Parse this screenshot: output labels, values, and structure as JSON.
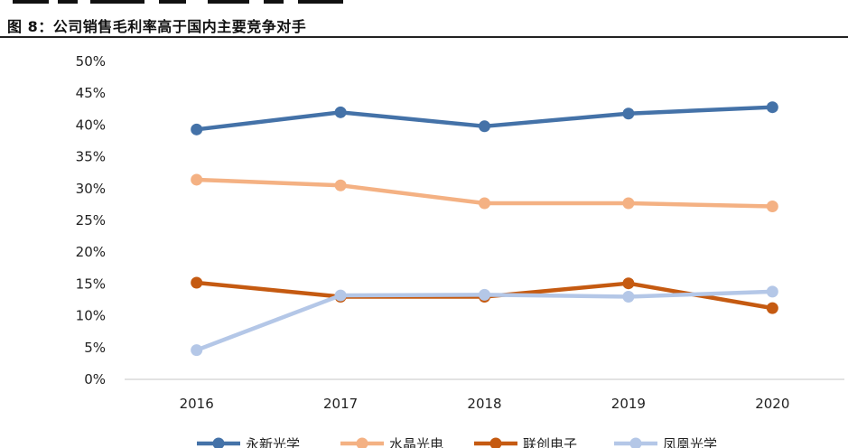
{
  "header": {
    "title": "图 8：公司销售毛利率高于国内主要竞争对手"
  },
  "chart_data": {
    "type": "line",
    "title": "图 8：公司销售毛利率高于国内主要竞争对手",
    "xlabel": "",
    "ylabel": "",
    "x": [
      "2016",
      "2017",
      "2018",
      "2019",
      "2020"
    ],
    "ylim": [
      0,
      50
    ],
    "yticks": [
      "0%",
      "5%",
      "10%",
      "15%",
      "20%",
      "25%",
      "30%",
      "35%",
      "40%",
      "45%",
      "50%"
    ],
    "grid": false,
    "legend_position": "bottom",
    "series": [
      {
        "name": "永新光学",
        "color": "#4472a8",
        "values": [
          39.3,
          42.0,
          39.8,
          41.8,
          42.8
        ]
      },
      {
        "name": "水晶光电",
        "color": "#f4b183",
        "values": [
          31.4,
          30.5,
          27.7,
          27.7,
          27.2
        ]
      },
      {
        "name": "联创电子",
        "color": "#c55a11",
        "values": [
          15.2,
          13.0,
          13.0,
          15.1,
          11.2
        ]
      },
      {
        "name": "凤凰光学",
        "color": "#b4c7e7",
        "values": [
          4.6,
          13.2,
          13.3,
          13.0,
          13.8
        ]
      }
    ]
  }
}
